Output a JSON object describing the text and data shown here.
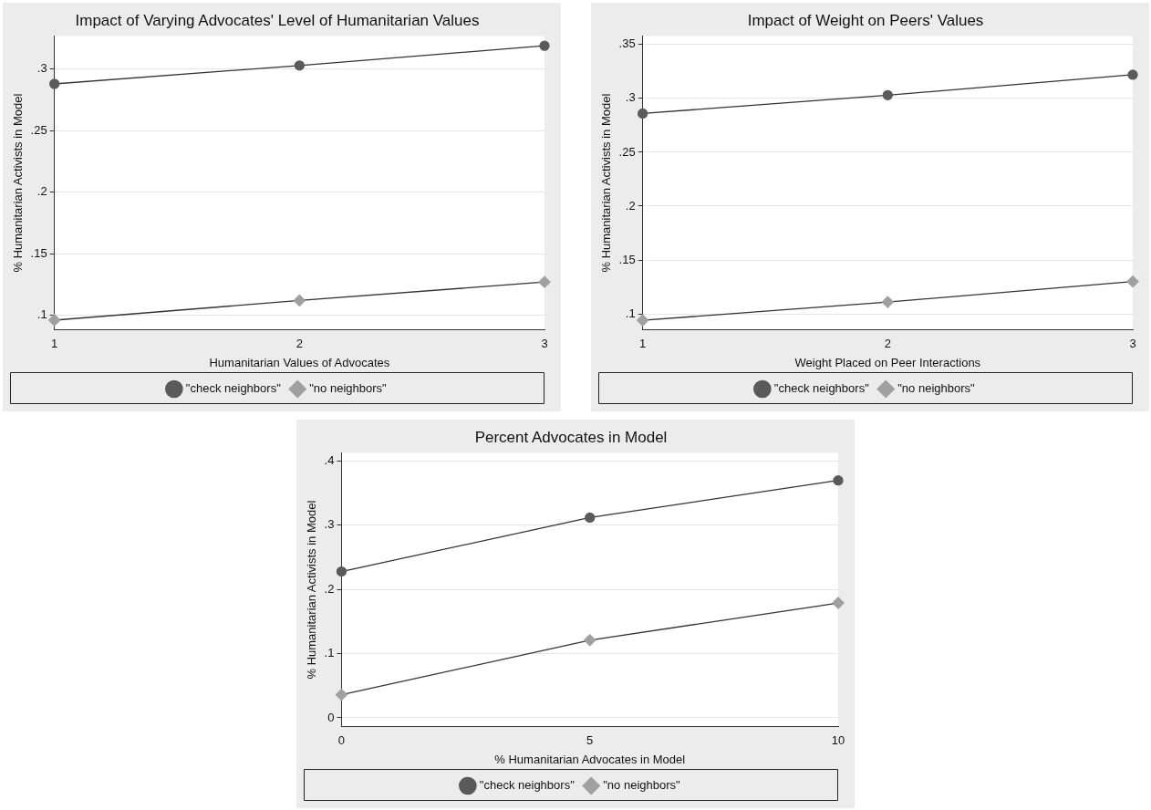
{
  "chart_data": [
    {
      "type": "line",
      "title": "Impact of Varying Advocates' Level of Humanitarian Values",
      "xlabel": "Humanitarian Values of Advocates",
      "ylabel": "% Humanitarian Activists in Model",
      "x": [
        1,
        2,
        3
      ],
      "xlim": [
        1,
        3
      ],
      "xticks": [
        1,
        2,
        3
      ],
      "ylim": [
        0.088,
        0.327
      ],
      "yticks": [
        {
          "value": 0.1,
          "label": ".1"
        },
        {
          "value": 0.15,
          "label": ".15"
        },
        {
          "value": 0.2,
          "label": ".2"
        },
        {
          "value": 0.25,
          "label": ".25"
        },
        {
          "value": 0.3,
          "label": ".3"
        }
      ],
      "grid": "y",
      "legend": "bottom",
      "line_style": "solid",
      "series": [
        {
          "name": "\"check neighbors\"",
          "color": "#5a5a5a",
          "marker": "circle",
          "values": [
            0.288,
            0.303,
            0.319
          ]
        },
        {
          "name": "\"no neighbors\"",
          "color": "#a0a0a0",
          "marker": "diamond",
          "values": [
            0.096,
            0.112,
            0.127
          ]
        }
      ]
    },
    {
      "type": "line",
      "title": "Impact of Weight on Peers' Values",
      "xlabel": "Weight Placed on Peer Interactions",
      "ylabel": "% Humanitarian Activists in Model",
      "x": [
        1,
        2,
        3
      ],
      "xlim": [
        1,
        3
      ],
      "xticks": [
        1,
        2,
        3
      ],
      "ylim": [
        0.085,
        0.358
      ],
      "yticks": [
        {
          "value": 0.1,
          "label": ".1"
        },
        {
          "value": 0.15,
          "label": ".15"
        },
        {
          "value": 0.2,
          "label": ".2"
        },
        {
          "value": 0.25,
          "label": ".25"
        },
        {
          "value": 0.3,
          "label": ".3"
        },
        {
          "value": 0.35,
          "label": ".35"
        }
      ],
      "grid": "y",
      "legend": "bottom",
      "line_style": "solid",
      "series": [
        {
          "name": "\"check neighbors\"",
          "color": "#5a5a5a",
          "marker": "circle",
          "values": [
            0.286,
            0.303,
            0.322
          ]
        },
        {
          "name": "\"no neighbors\"",
          "color": "#a0a0a0",
          "marker": "diamond",
          "values": [
            0.094,
            0.111,
            0.13
          ]
        }
      ]
    },
    {
      "type": "line",
      "title": "Percent Advocates in Model",
      "xlabel": "% Humanitarian Advocates in Model",
      "ylabel": "% Humanitarian Activists in Model",
      "x": [
        0,
        5,
        10
      ],
      "xlim": [
        0,
        10
      ],
      "xticks": [
        0,
        5,
        10
      ],
      "ylim": [
        -0.014,
        0.413
      ],
      "yticks": [
        0,
        {
          "value": 0.1,
          "label": ".1"
        },
        {
          "value": 0.2,
          "label": ".2"
        },
        {
          "value": 0.3,
          "label": ".3"
        },
        {
          "value": 0.4,
          "label": ".4"
        }
      ],
      "grid": "y",
      "legend": "bottom",
      "line_style": "solid",
      "series": [
        {
          "name": "\"check neighbors\"",
          "color": "#5a5a5a",
          "marker": "circle",
          "values": [
            0.228,
            0.312,
            0.37
          ]
        },
        {
          "name": "\"no neighbors\"",
          "color": "#a0a0a0",
          "marker": "diamond",
          "values": [
            0.036,
            0.121,
            0.179
          ]
        }
      ]
    }
  ]
}
